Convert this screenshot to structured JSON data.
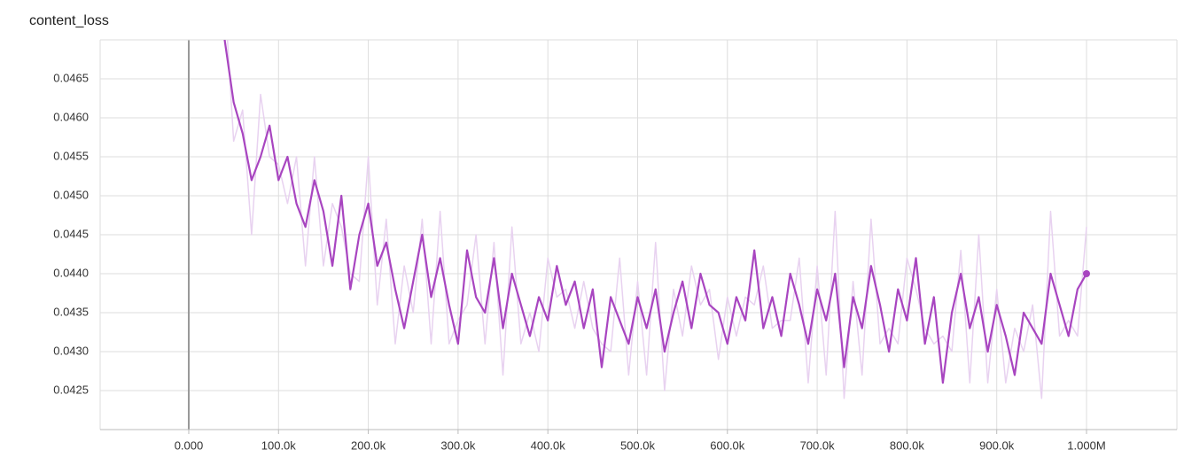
{
  "chart_data": {
    "type": "line",
    "title": "content_loss",
    "x": [
      40000,
      50000,
      60000,
      70000,
      80000,
      90000,
      100000,
      110000,
      120000,
      130000,
      140000,
      150000,
      160000,
      170000,
      180000,
      190000,
      200000,
      210000,
      220000,
      230000,
      240000,
      250000,
      260000,
      270000,
      280000,
      290000,
      300000,
      310000,
      320000,
      330000,
      340000,
      350000,
      360000,
      370000,
      380000,
      390000,
      400000,
      410000,
      420000,
      430000,
      440000,
      450000,
      460000,
      470000,
      480000,
      490000,
      500000,
      510000,
      520000,
      530000,
      540000,
      550000,
      560000,
      570000,
      580000,
      590000,
      600000,
      610000,
      620000,
      630000,
      640000,
      650000,
      660000,
      670000,
      680000,
      690000,
      700000,
      710000,
      720000,
      730000,
      740000,
      750000,
      760000,
      770000,
      780000,
      790000,
      800000,
      810000,
      820000,
      830000,
      840000,
      850000,
      860000,
      870000,
      880000,
      890000,
      900000,
      910000,
      920000,
      930000,
      940000,
      950000,
      960000,
      970000,
      980000,
      990000,
      1000000
    ],
    "series": [
      {
        "color": "#e8d2f0",
        "values": [
          0.0476,
          0.0457,
          0.0461,
          0.0445,
          0.0463,
          0.0455,
          0.0454,
          0.0449,
          0.0455,
          0.0441,
          0.0455,
          0.0441,
          0.0449,
          0.0446,
          0.044,
          0.0439,
          0.0455,
          0.0436,
          0.0447,
          0.0431,
          0.0441,
          0.0435,
          0.0447,
          0.0431,
          0.0448,
          0.0431,
          0.0434,
          0.0436,
          0.0445,
          0.0431,
          0.0444,
          0.0427,
          0.0446,
          0.0431,
          0.0435,
          0.043,
          0.0442,
          0.0437,
          0.0438,
          0.0433,
          0.0439,
          0.0433,
          0.0431,
          0.043,
          0.0442,
          0.0427,
          0.0439,
          0.0427,
          0.0444,
          0.0425,
          0.0438,
          0.0432,
          0.0441,
          0.0436,
          0.0438,
          0.0429,
          0.0437,
          0.0432,
          0.0437,
          0.0436,
          0.0441,
          0.0433,
          0.0434,
          0.0434,
          0.0442,
          0.0426,
          0.0441,
          0.0427,
          0.0448,
          0.0424,
          0.0439,
          0.0427,
          0.0447,
          0.0431,
          0.0433,
          0.0431,
          0.0442,
          0.0438,
          0.0433,
          0.0431,
          0.0432,
          0.043,
          0.0443,
          0.0426,
          0.0445,
          0.0426,
          0.0438,
          0.0426,
          0.0433,
          0.043,
          0.0436,
          0.0424,
          0.0448,
          0.0432,
          0.0434,
          0.0432,
          0.0446
        ]
      },
      {
        "color": "#a845c0",
        "values": [
          0.047,
          0.0462,
          0.0458,
          0.0452,
          0.0455,
          0.0459,
          0.0452,
          0.0455,
          0.0449,
          0.0446,
          0.0452,
          0.0448,
          0.0441,
          0.045,
          0.0438,
          0.0445,
          0.0449,
          0.0441,
          0.0444,
          0.0438,
          0.0433,
          0.0439,
          0.0445,
          0.0437,
          0.0442,
          0.0436,
          0.0431,
          0.0443,
          0.0437,
          0.0435,
          0.0442,
          0.0433,
          0.044,
          0.0436,
          0.0432,
          0.0437,
          0.0434,
          0.0441,
          0.0436,
          0.0439,
          0.0433,
          0.0438,
          0.0428,
          0.0437,
          0.0434,
          0.0431,
          0.0437,
          0.0433,
          0.0438,
          0.043,
          0.0435,
          0.0439,
          0.0433,
          0.044,
          0.0436,
          0.0435,
          0.0431,
          0.0437,
          0.0434,
          0.0443,
          0.0433,
          0.0437,
          0.0432,
          0.044,
          0.0436,
          0.0431,
          0.0438,
          0.0434,
          0.044,
          0.0428,
          0.0437,
          0.0433,
          0.0441,
          0.0436,
          0.043,
          0.0438,
          0.0434,
          0.0442,
          0.0431,
          0.0437,
          0.0426,
          0.0435,
          0.044,
          0.0433,
          0.0437,
          0.043,
          0.0436,
          0.0432,
          0.0427,
          0.0435,
          0.0433,
          0.0431,
          0.044,
          0.0436,
          0.0432,
          0.0438,
          0.044
        ]
      }
    ],
    "xlim": [
      -98700,
      1100700
    ],
    "xticks": [
      {
        "value": 0,
        "label": "0.000"
      },
      {
        "value": 100000,
        "label": "100.0k"
      },
      {
        "value": 200000,
        "label": "200.0k"
      },
      {
        "value": 300000,
        "label": "300.0k"
      },
      {
        "value": 400000,
        "label": "400.0k"
      },
      {
        "value": 500000,
        "label": "500.0k"
      },
      {
        "value": 600000,
        "label": "600.0k"
      },
      {
        "value": 700000,
        "label": "700.0k"
      },
      {
        "value": 800000,
        "label": "800.0k"
      },
      {
        "value": 900000,
        "label": "900.0k"
      },
      {
        "value": 1000000,
        "label": "1.000M"
      }
    ],
    "ylim": [
      0.042,
      0.047
    ],
    "yticks": [
      0.0425,
      {
        "value": 0.043,
        "label": "0.0430"
      },
      0.0435,
      {
        "value": 0.044,
        "label": "0.0440"
      },
      0.0445,
      {
        "value": 0.045,
        "label": "0.0450"
      },
      0.0455,
      {
        "value": 0.046,
        "label": "0.0460"
      },
      0.0465
    ],
    "grid": true
  }
}
